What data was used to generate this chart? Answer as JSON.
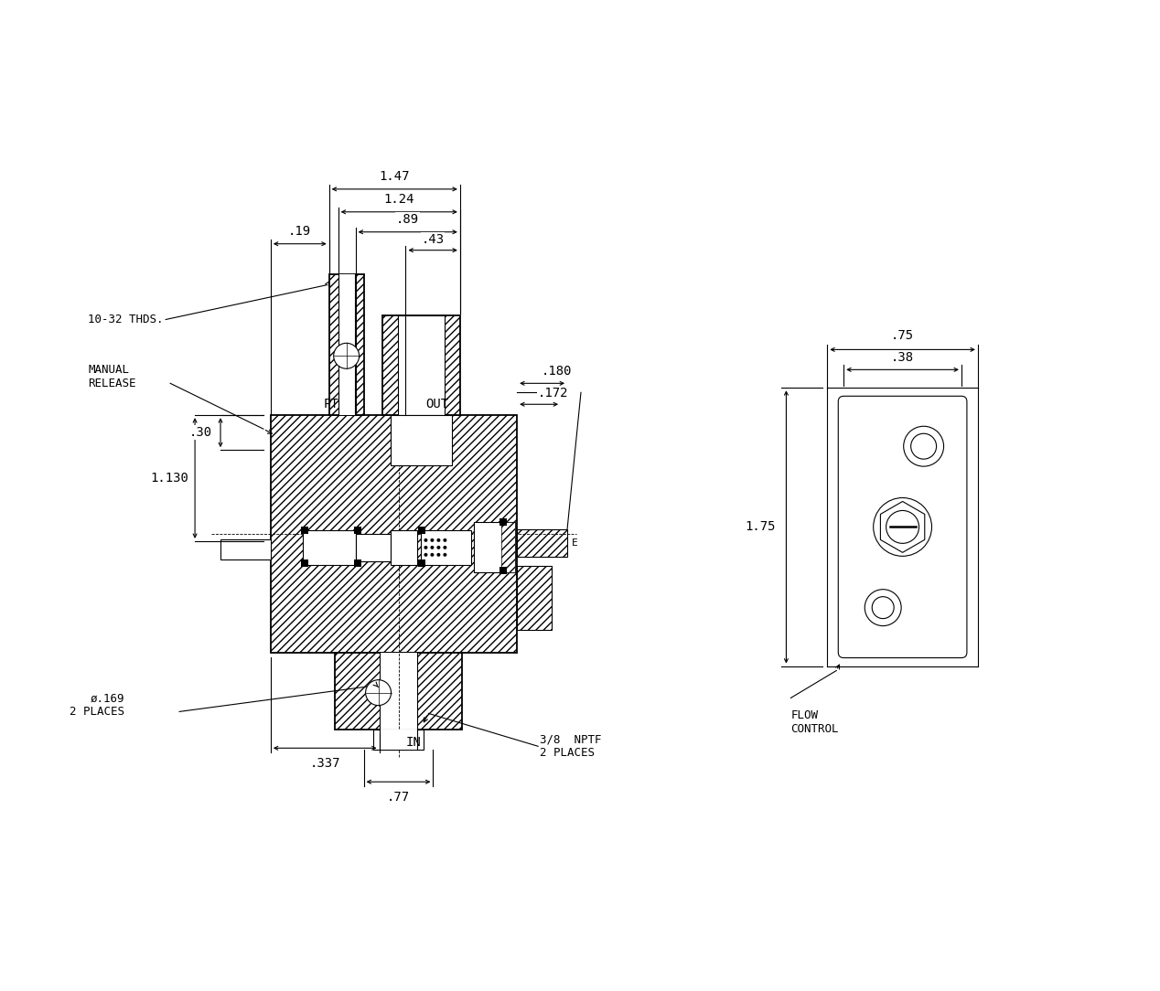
{
  "line_color": "#000000",
  "font_size_dim": 10,
  "font_size_label": 10,
  "font_size_note": 9,
  "dims": {
    "d_019": ".19",
    "d_147": "1.47",
    "d_124": "1.24",
    "d_089": ".89",
    "d_043": ".43",
    "d_180": ".180",
    "d_172": ".172",
    "d_030": ".30",
    "d_1130": "1.130",
    "d_0169": "ø.169\n2 PLACES",
    "d_337": ".337",
    "d_nptf": "3/8  NPTF\n2 PLACES",
    "d_077": ".77",
    "d_075": ".75",
    "d_038": ".38",
    "d_175": "1.75"
  },
  "labels": {
    "pt": "PT",
    "out": "OUT",
    "in_lbl": "IN",
    "thds": "10-32 THDS.",
    "manual_release": "MANUAL\nRELEASE",
    "flow_control": "FLOW\nCONTROL",
    "e_label": "E"
  }
}
